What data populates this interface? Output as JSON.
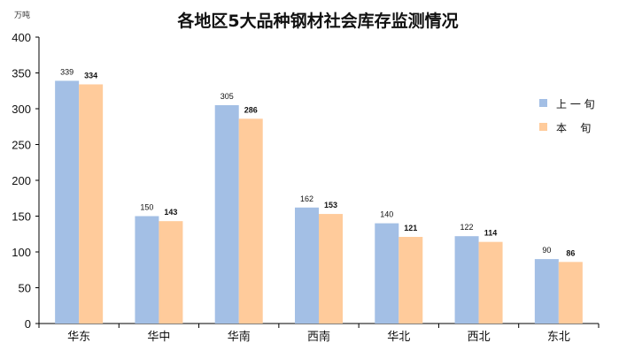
{
  "chart_data": {
    "type": "bar",
    "title": "各地区5大品种钢材社会库存监测情况",
    "unit_label": "万吨",
    "categories": [
      "华东",
      "华中",
      "华南",
      "西南",
      "华北",
      "西北",
      "东北"
    ],
    "series": [
      {
        "name": "上一旬",
        "legend_label": "上 一 旬",
        "color": "#A3BFE5",
        "values": [
          339,
          150,
          305,
          162,
          140,
          122,
          90
        ]
      },
      {
        "name": "本旬",
        "legend_label": "本    旬",
        "color": "#FFCB9B",
        "values": [
          334,
          143,
          286,
          153,
          121,
          114,
          86
        ]
      }
    ],
    "ylim": [
      0,
      400
    ],
    "yticks": [
      0,
      50,
      100,
      150,
      200,
      250,
      300,
      350,
      400
    ],
    "grid": false,
    "legend_position": "right"
  }
}
